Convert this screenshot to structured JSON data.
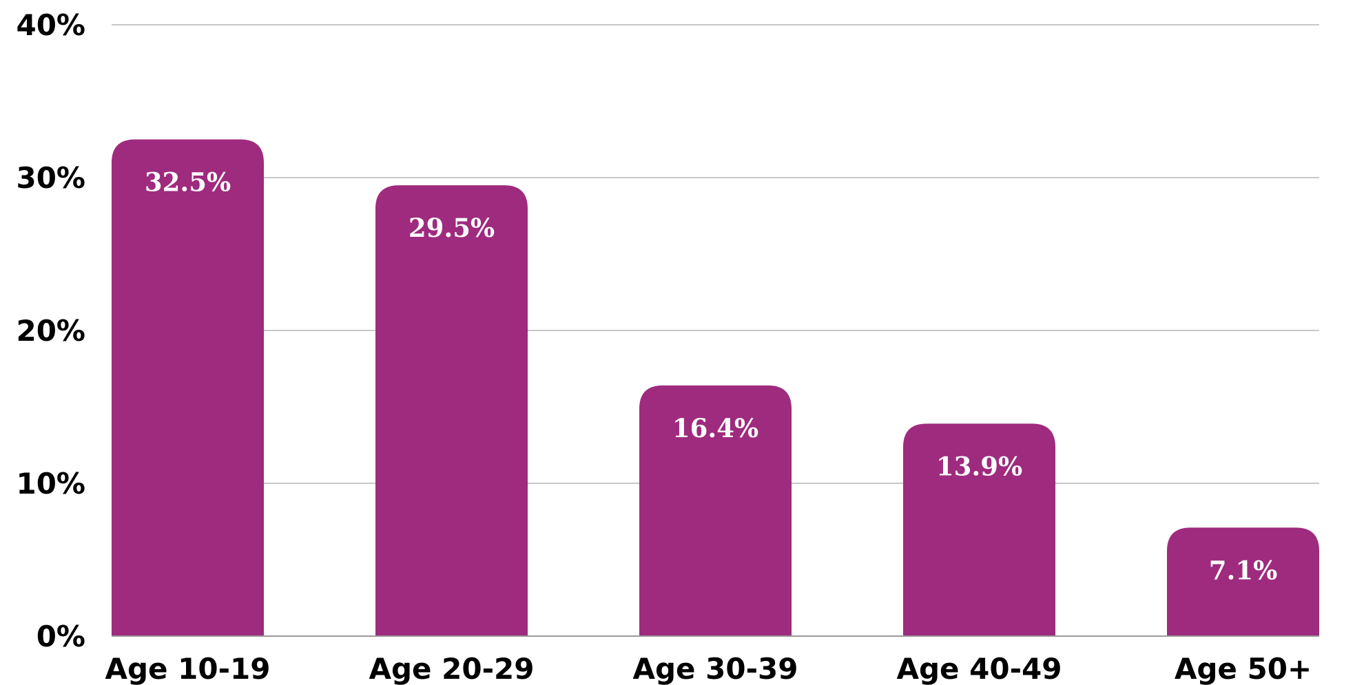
{
  "chart_data": {
    "type": "bar",
    "categories": [
      "Age 10-19",
      "Age 20-29",
      "Age 30-39",
      "Age 40-49",
      "Age 50+"
    ],
    "values": [
      32.5,
      29.5,
      16.4,
      13.9,
      7.1
    ],
    "value_labels": [
      "32.5%",
      "29.5%",
      "16.4%",
      "13.9%",
      "7.1%"
    ],
    "y_ticks": [
      0,
      10,
      20,
      30,
      40
    ],
    "y_tick_labels": [
      "0%",
      "10%",
      "20%",
      "30%",
      "40%"
    ],
    "ylim": [
      0,
      40
    ],
    "grid": true,
    "legend": "none",
    "bar_color": "#9E2B7E",
    "value_label_color": "#FFFFFF",
    "title": "",
    "xlabel": "",
    "ylabel": ""
  }
}
